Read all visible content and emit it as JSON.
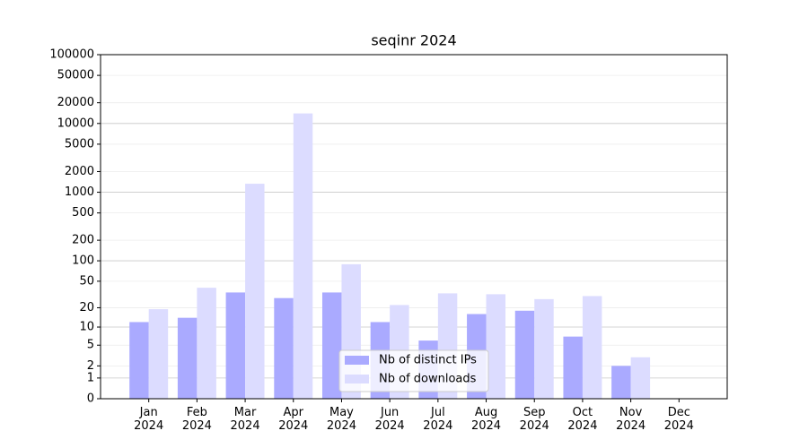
{
  "chart_data": {
    "type": "bar",
    "title": "seqinr 2024",
    "categories": [
      "Jan\n2024",
      "Feb\n2024",
      "Mar\n2024",
      "Apr\n2024",
      "May\n2024",
      "Jun\n2024",
      "Jul\n2024",
      "Aug\n2024",
      "Sep\n2024",
      "Oct\n2024",
      "Nov\n2024",
      "Dec\n2024"
    ],
    "series": [
      {
        "name": "Nb of distinct IPs",
        "color": "#aaaaff",
        "values": [
          12,
          14,
          34,
          28,
          34,
          12,
          6,
          16,
          18,
          7,
          2,
          0
        ]
      },
      {
        "name": "Nb of downloads",
        "color": "#dcdcff",
        "values": [
          19,
          40,
          1330,
          14000,
          89,
          22,
          33,
          32,
          27,
          30,
          3,
          0
        ]
      }
    ],
    "yscale": "log1p",
    "ylim": [
      0,
      100000
    ],
    "yticks": [
      0,
      1,
      2,
      5,
      10,
      20,
      50,
      100,
      200,
      500,
      1000,
      2000,
      5000,
      10000,
      20000,
      50000,
      100000
    ],
    "grid": true,
    "legend": "lower center"
  }
}
